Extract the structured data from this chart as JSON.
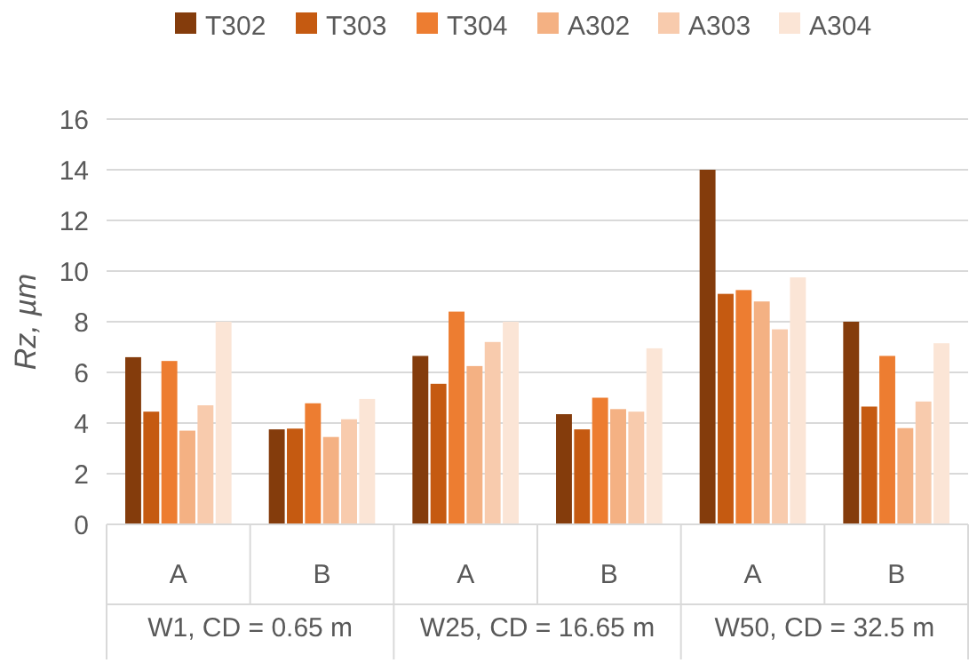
{
  "chart_data": {
    "type": "bar",
    "ylabel": "Rz, µm",
    "categories": [
      "A",
      "B",
      "A",
      "B",
      "A",
      "B"
    ],
    "annotations": [
      "W1, CD = 0.65 m",
      "W25, CD = 16.65 m",
      "W50, CD = 32.5 m"
    ],
    "series": [
      {
        "name": "T302",
        "color": "#843c0c",
        "values": [
          6.6,
          3.75,
          6.65,
          4.35,
          14.0,
          8.0
        ]
      },
      {
        "name": "T303",
        "color": "#c55a11",
        "values": [
          4.45,
          3.78,
          5.55,
          3.75,
          9.1,
          4.65
        ]
      },
      {
        "name": "T304",
        "color": "#ed7d31",
        "values": [
          6.45,
          4.78,
          8.4,
          5.0,
          9.25,
          6.65
        ]
      },
      {
        "name": "A302",
        "color": "#f4b183",
        "values": [
          3.7,
          3.45,
          6.25,
          4.55,
          8.8,
          3.8
        ]
      },
      {
        "name": "A303",
        "color": "#f8cbad",
        "values": [
          4.7,
          4.15,
          7.2,
          4.45,
          7.7,
          4.85
        ]
      },
      {
        "name": "A304",
        "color": "#fbe5d6",
        "values": [
          8.0,
          4.95,
          8.0,
          6.95,
          9.75,
          7.15
        ]
      }
    ],
    "ylim": [
      0,
      16
    ],
    "yticks": [
      0,
      2,
      4,
      6,
      8,
      10,
      12,
      14,
      16
    ],
    "grid": "y",
    "legend": "top"
  }
}
